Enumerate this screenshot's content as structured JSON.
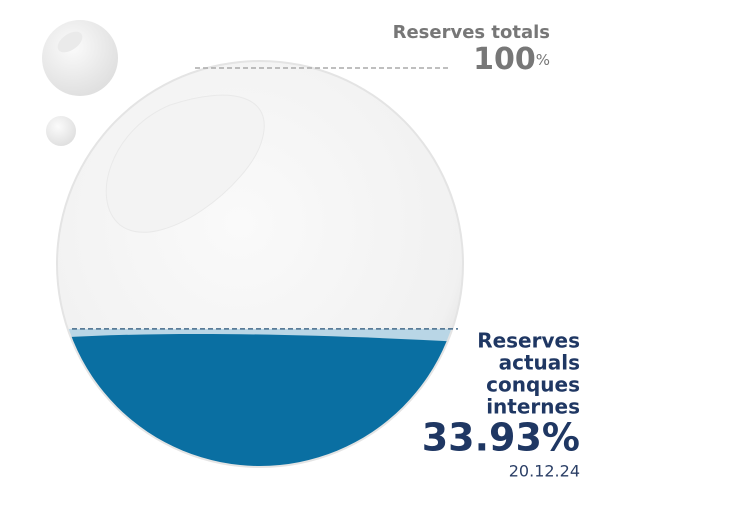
{
  "chart_data": {
    "type": "fill-gauge",
    "max_label": "Reserves totals",
    "max": 100,
    "unit": "%",
    "label": [
      "Reserves",
      "actuals",
      "conques",
      "internes"
    ],
    "value": 33.93,
    "value_label": "33.93%",
    "date": "20.12.24",
    "color": "#0a6fa2"
  }
}
